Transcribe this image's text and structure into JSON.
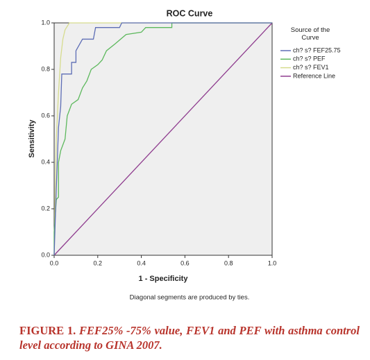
{
  "chart_data": {
    "type": "line",
    "title": "ROC Curve",
    "xlabel": "1 - Specificity",
    "ylabel": "Sensitivity",
    "note": "Diagonal segments are produced by ties.",
    "legend_title": "Source of the Curve",
    "xlim": [
      0,
      1
    ],
    "ylim": [
      0,
      1
    ],
    "xticks": [
      {
        "value": 0,
        "label": "0.0"
      },
      {
        "value": 0.2,
        "label": "0.2"
      },
      {
        "value": 0.4,
        "label": "0.4"
      },
      {
        "value": 0.6,
        "label": "0.6"
      },
      {
        "value": 0.8,
        "label": "0.8"
      },
      {
        "value": 1,
        "label": "1.0"
      }
    ],
    "yticks": [
      {
        "value": 0,
        "label": "0.0"
      },
      {
        "value": 0.2,
        "label": "0.2"
      },
      {
        "value": 0.4,
        "label": "0.4"
      },
      {
        "value": 0.6,
        "label": "0.6"
      },
      {
        "value": 0.8,
        "label": "0.8"
      },
      {
        "value": 1,
        "label": "1.0"
      }
    ],
    "grid": false,
    "series": [
      {
        "name": "ch? s? FEF25.75",
        "color": "#5d6db5",
        "x": [
          0,
          0.005,
          0.01,
          0.02,
          0.03,
          0.035,
          0.08,
          0.08,
          0.1,
          0.1,
          0.13,
          0.18,
          0.19,
          0.3,
          0.31,
          1
        ],
        "values": [
          0,
          0.15,
          0.29,
          0.55,
          0.64,
          0.78,
          0.78,
          0.83,
          0.83,
          0.88,
          0.93,
          0.93,
          0.98,
          0.98,
          1,
          1
        ]
      },
      {
        "name": "ch? s? PEF",
        "color": "#5cb85c",
        "x": [
          0,
          0,
          0.01,
          0.02,
          0.02,
          0.03,
          0.05,
          0.06,
          0.08,
          0.11,
          0.13,
          0.15,
          0.17,
          0.2,
          0.22,
          0.24,
          0.28,
          0.33,
          0.4,
          0.42,
          0.54,
          0.54,
          1
        ],
        "values": [
          0,
          0.1,
          0.24,
          0.25,
          0.4,
          0.45,
          0.5,
          0.6,
          0.65,
          0.67,
          0.72,
          0.75,
          0.8,
          0.82,
          0.84,
          0.88,
          0.91,
          0.95,
          0.96,
          0.98,
          0.98,
          1,
          1
        ]
      },
      {
        "name": "ch? s? FEV1",
        "color": "#d6dc8e",
        "x": [
          0,
          0.005,
          0.01,
          0.02,
          0.03,
          0.04,
          0.05,
          0.07,
          1
        ],
        "values": [
          0,
          0.3,
          0.5,
          0.7,
          0.85,
          0.93,
          0.97,
          1,
          1
        ]
      },
      {
        "name": "Reference Line",
        "color": "#8e3b8e",
        "x": [
          0,
          1
        ],
        "values": [
          0,
          1
        ]
      }
    ],
    "caption": {
      "label": "FIGURE 1.",
      "text": "FEF25% -75% value, FEV1 and PEF with asthma control level according to GINA 2007."
    }
  }
}
